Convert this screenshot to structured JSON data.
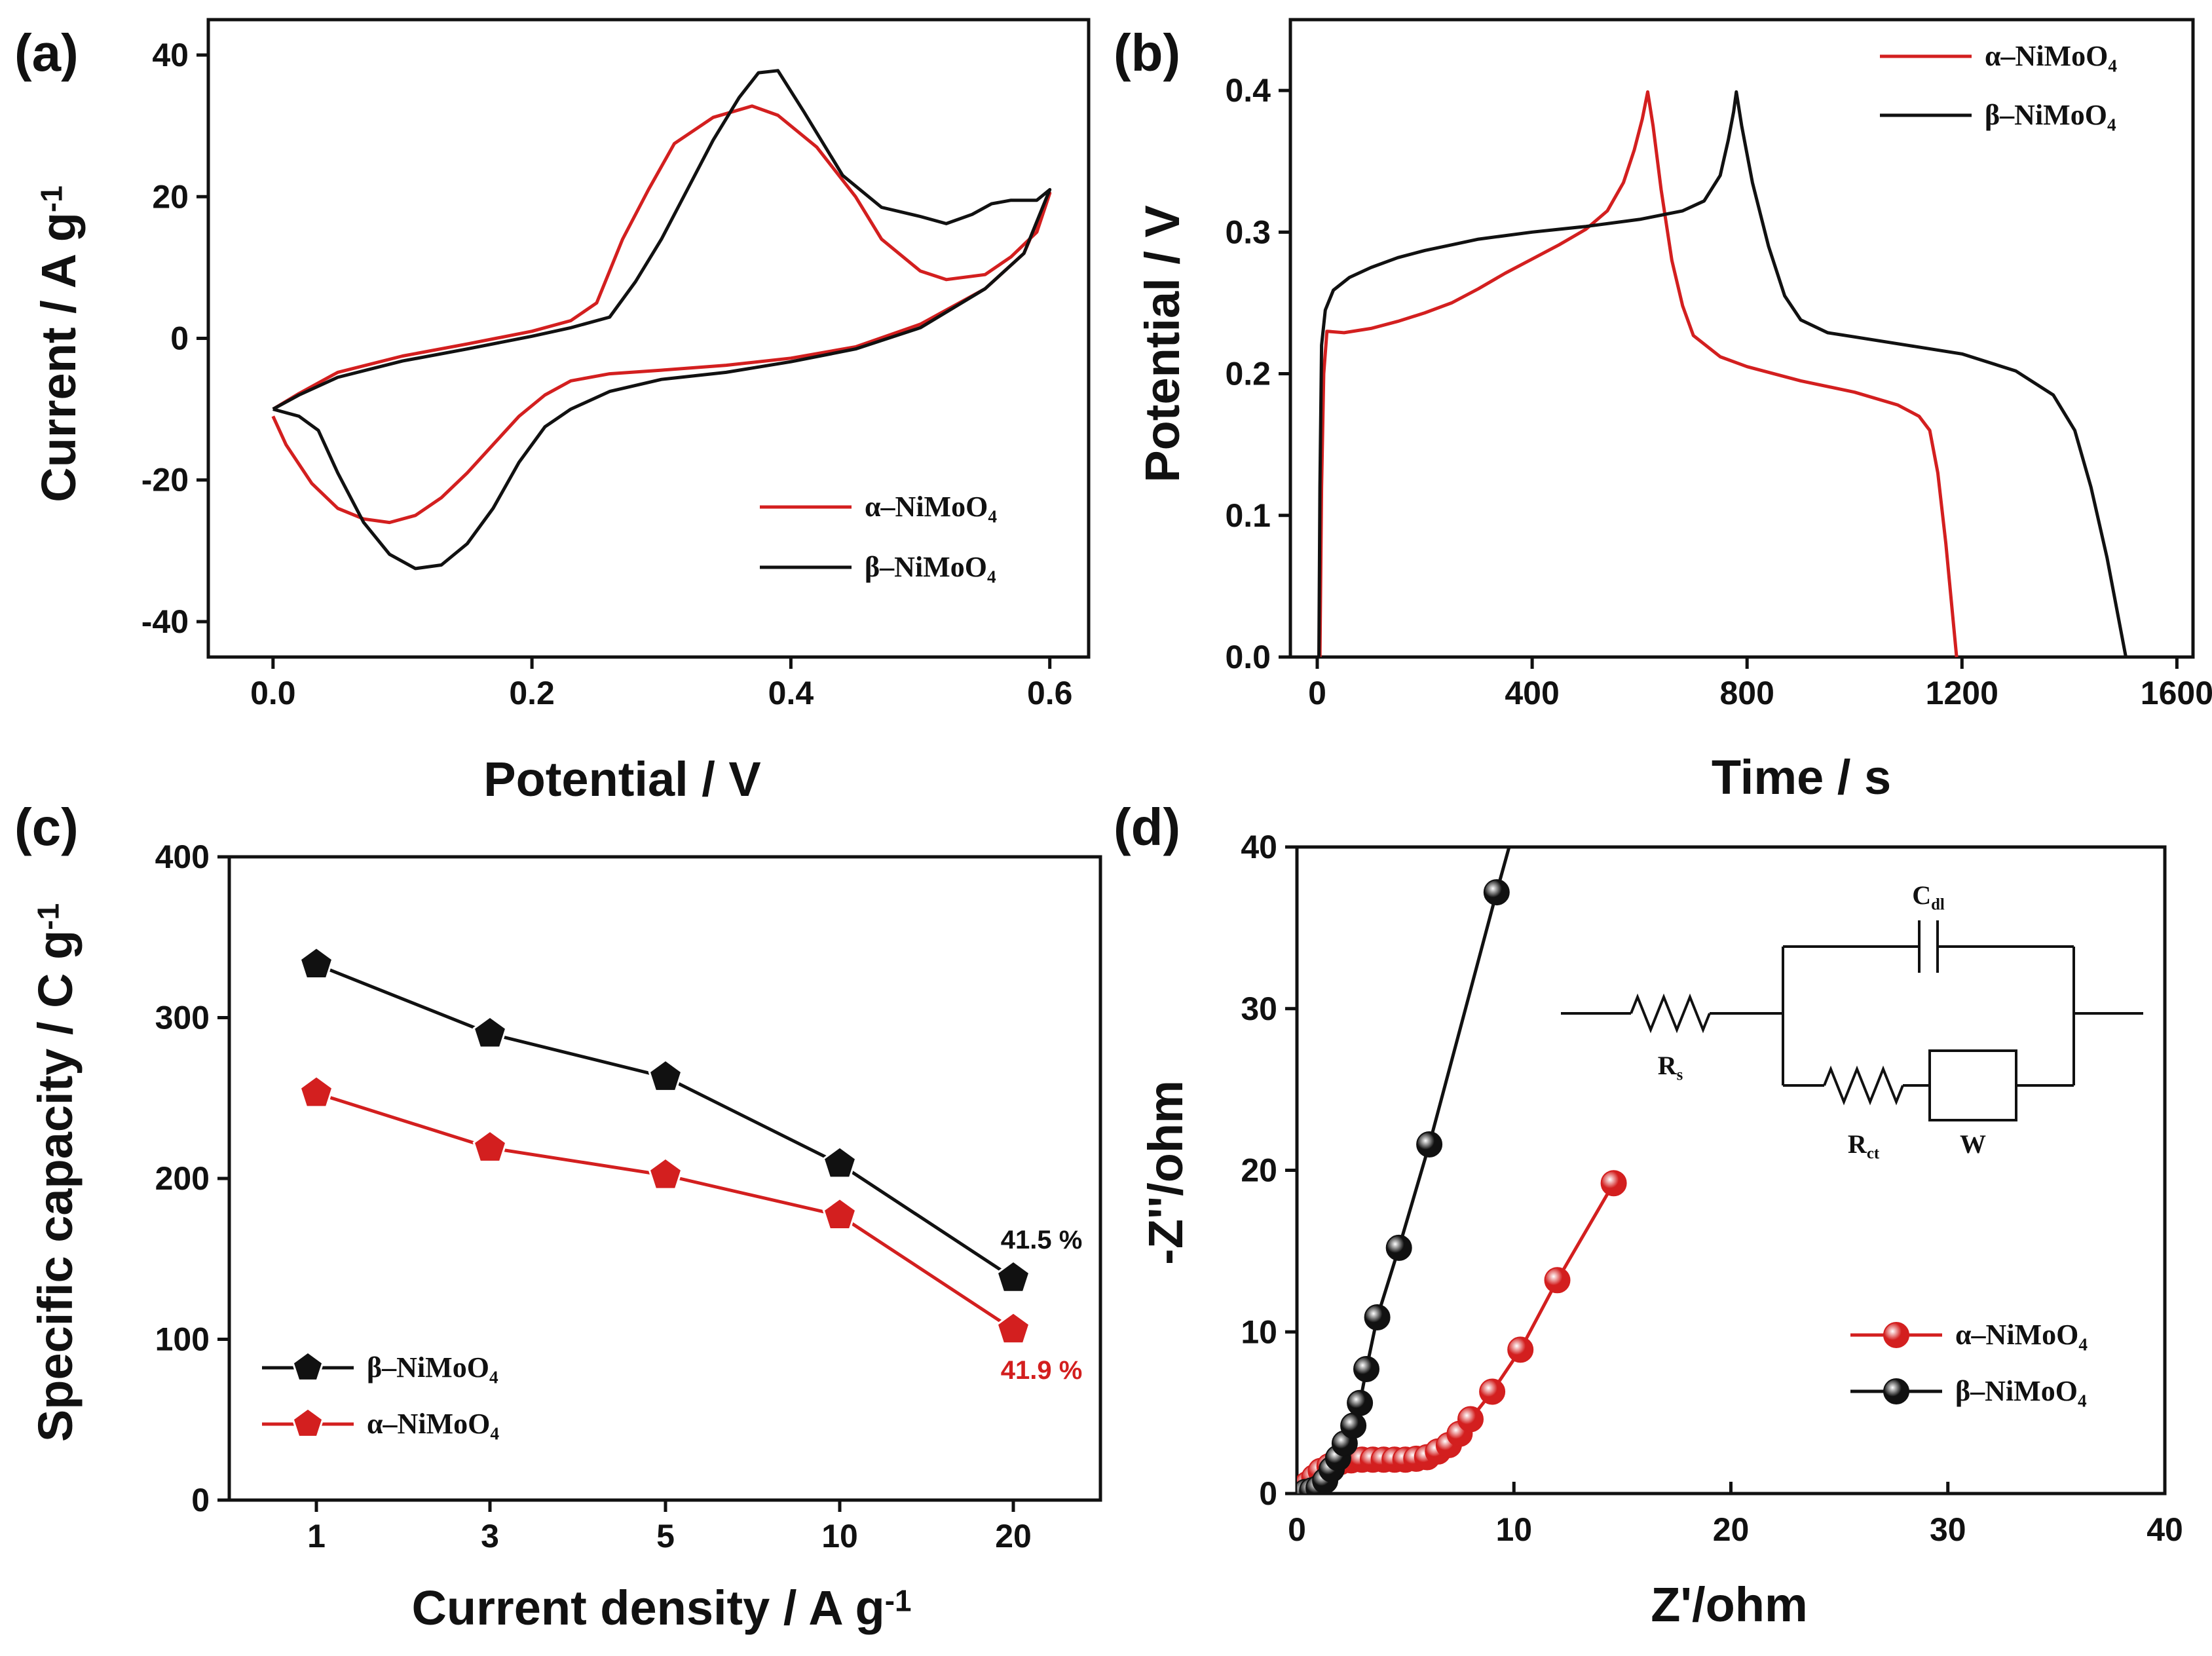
{
  "colors": {
    "alpha": "#d31f1f",
    "beta": "#111111",
    "axis": "#111111"
  },
  "chart_data": [
    {
      "panel": "(a)",
      "type": "line",
      "xlabel": "Potential / V",
      "ylabel": "Current / A g",
      "ylabel_sup": "-1",
      "xlim": [
        -0.05,
        0.63
      ],
      "ylim": [
        -45,
        45
      ],
      "xticks": [
        0.0,
        0.2,
        0.4,
        0.6
      ],
      "xtick_labels": [
        "0.0",
        "0.2",
        "0.4",
        "0.6"
      ],
      "yticks": [
        -40,
        -20,
        0,
        20,
        40
      ],
      "ytick_labels": [
        "-40",
        "-20",
        "0",
        "20",
        "40"
      ],
      "legend_position": "bottom-right",
      "series": [
        {
          "name": "α–NiMoO",
          "sub": "4",
          "color_key": "alpha",
          "points": [
            [
              0,
              -11
            ],
            [
              0.01,
              -15
            ],
            [
              0.03,
              -20.5
            ],
            [
              0.05,
              -24
            ],
            [
              0.07,
              -25.5
            ],
            [
              0.09,
              -26
            ],
            [
              0.11,
              -25
            ],
            [
              0.13,
              -22.5
            ],
            [
              0.15,
              -19
            ],
            [
              0.17,
              -15
            ],
            [
              0.19,
              -11
            ],
            [
              0.21,
              -8
            ],
            [
              0.23,
              -6
            ],
            [
              0.26,
              -5
            ],
            [
              0.3,
              -4.5
            ],
            [
              0.35,
              -3.8
            ],
            [
              0.4,
              -2.8
            ],
            [
              0.45,
              -1.2
            ],
            [
              0.5,
              2
            ],
            [
              0.55,
              7
            ],
            [
              0.58,
              12
            ],
            [
              0.6,
              20.5
            ],
            [
              0.59,
              15
            ],
            [
              0.57,
              11.5
            ],
            [
              0.55,
              9
            ],
            [
              0.52,
              8.3
            ],
            [
              0.5,
              9.5
            ],
            [
              0.47,
              14
            ],
            [
              0.45,
              20
            ],
            [
              0.42,
              27
            ],
            [
              0.39,
              31.5
            ],
            [
              0.37,
              32.8
            ],
            [
              0.34,
              31.2
            ],
            [
              0.31,
              27.5
            ],
            [
              0.29,
              21
            ],
            [
              0.27,
              14
            ],
            [
              0.25,
              5
            ],
            [
              0.23,
              2.5
            ],
            [
              0.2,
              1
            ],
            [
              0.15,
              -0.8
            ],
            [
              0.1,
              -2.5
            ],
            [
              0.05,
              -4.8
            ],
            [
              0.02,
              -7.8
            ],
            [
              0,
              -10
            ]
          ]
        },
        {
          "name": "β–NiMoO",
          "sub": "4",
          "color_key": "beta",
          "points": [
            [
              0,
              -10
            ],
            [
              0.02,
              -11
            ],
            [
              0.035,
              -13
            ],
            [
              0.05,
              -19
            ],
            [
              0.07,
              -26
            ],
            [
              0.09,
              -30.5
            ],
            [
              0.11,
              -32.5
            ],
            [
              0.13,
              -32
            ],
            [
              0.15,
              -29
            ],
            [
              0.17,
              -24
            ],
            [
              0.19,
              -17.5
            ],
            [
              0.21,
              -12.5
            ],
            [
              0.23,
              -10
            ],
            [
              0.26,
              -7.5
            ],
            [
              0.3,
              -5.8
            ],
            [
              0.35,
              -4.8
            ],
            [
              0.4,
              -3.3
            ],
            [
              0.45,
              -1.5
            ],
            [
              0.5,
              1.5
            ],
            [
              0.55,
              7
            ],
            [
              0.58,
              12
            ],
            [
              0.6,
              21
            ],
            [
              0.59,
              19.5
            ],
            [
              0.57,
              19.5
            ],
            [
              0.555,
              19
            ],
            [
              0.54,
              17.5
            ],
            [
              0.52,
              16.2
            ],
            [
              0.5,
              17.2
            ],
            [
              0.47,
              18.5
            ],
            [
              0.44,
              23
            ],
            [
              0.41,
              32
            ],
            [
              0.39,
              37.8
            ],
            [
              0.375,
              37.5
            ],
            [
              0.36,
              34
            ],
            [
              0.34,
              28
            ],
            [
              0.32,
              21
            ],
            [
              0.3,
              14
            ],
            [
              0.28,
              8
            ],
            [
              0.26,
              3
            ],
            [
              0.23,
              1.5
            ],
            [
              0.2,
              0.3
            ],
            [
              0.15,
              -1.5
            ],
            [
              0.1,
              -3.2
            ],
            [
              0.05,
              -5.5
            ],
            [
              0.02,
              -8
            ],
            [
              0,
              -10
            ]
          ]
        }
      ]
    },
    {
      "panel": "(b)",
      "type": "line",
      "xlabel": "Time / s",
      "ylabel": "Potential / V",
      "xlim": [
        -50,
        1630
      ],
      "ylim": [
        0,
        0.45
      ],
      "xticks": [
        0,
        400,
        800,
        1200,
        1600
      ],
      "xtick_labels": [
        "0",
        "400",
        "800",
        "1200",
        "1600"
      ],
      "yticks": [
        0.0,
        0.1,
        0.2,
        0.3,
        0.4
      ],
      "ytick_labels": [
        "0.0",
        "0.1",
        "0.2",
        "0.3",
        "0.4"
      ],
      "legend_position": "top-right",
      "series": [
        {
          "name": "α–NiMoO",
          "sub": "4",
          "color_key": "alpha",
          "points": [
            [
              5,
              0
            ],
            [
              8,
              0.12
            ],
            [
              12,
              0.2
            ],
            [
              18,
              0.23
            ],
            [
              50,
              0.229
            ],
            [
              100,
              0.232
            ],
            [
              150,
              0.237
            ],
            [
              200,
              0.243
            ],
            [
              250,
              0.25
            ],
            [
              300,
              0.26
            ],
            [
              350,
              0.271
            ],
            [
              400,
              0.281
            ],
            [
              450,
              0.291
            ],
            [
              500,
              0.302
            ],
            [
              540,
              0.315
            ],
            [
              570,
              0.335
            ],
            [
              590,
              0.358
            ],
            [
              605,
              0.38
            ],
            [
              615,
              0.399
            ],
            [
              625,
              0.375
            ],
            [
              640,
              0.33
            ],
            [
              660,
              0.28
            ],
            [
              680,
              0.248
            ],
            [
              700,
              0.227
            ],
            [
              750,
              0.212
            ],
            [
              800,
              0.205
            ],
            [
              900,
              0.195
            ],
            [
              1000,
              0.187
            ],
            [
              1080,
              0.178
            ],
            [
              1120,
              0.17
            ],
            [
              1140,
              0.16
            ],
            [
              1155,
              0.13
            ],
            [
              1170,
              0.08
            ],
            [
              1180,
              0.04
            ],
            [
              1190,
              0
            ]
          ]
        },
        {
          "name": "β–NiMoO",
          "sub": "4",
          "color_key": "beta",
          "points": [
            [
              3,
              0
            ],
            [
              5,
              0.12
            ],
            [
              8,
              0.22
            ],
            [
              15,
              0.245
            ],
            [
              30,
              0.259
            ],
            [
              60,
              0.268
            ],
            [
              100,
              0.275
            ],
            [
              150,
              0.282
            ],
            [
              200,
              0.287
            ],
            [
              250,
              0.291
            ],
            [
              300,
              0.295
            ],
            [
              400,
              0.3
            ],
            [
              500,
              0.304
            ],
            [
              600,
              0.309
            ],
            [
              680,
              0.315
            ],
            [
              720,
              0.322
            ],
            [
              750,
              0.34
            ],
            [
              765,
              0.365
            ],
            [
              775,
              0.385
            ],
            [
              780,
              0.399
            ],
            [
              790,
              0.375
            ],
            [
              810,
              0.335
            ],
            [
              840,
              0.29
            ],
            [
              870,
              0.255
            ],
            [
              900,
              0.238
            ],
            [
              950,
              0.229
            ],
            [
              1000,
              0.226
            ],
            [
              1100,
              0.22
            ],
            [
              1200,
              0.214
            ],
            [
              1300,
              0.202
            ],
            [
              1370,
              0.185
            ],
            [
              1410,
              0.16
            ],
            [
              1440,
              0.12
            ],
            [
              1470,
              0.07
            ],
            [
              1490,
              0.03
            ],
            [
              1505,
              0
            ]
          ]
        }
      ]
    },
    {
      "panel": "(c)",
      "type": "line",
      "xlabel": "Current density / A g",
      "xlabel_sup": "-1",
      "ylabel": "Specific capacity / C g",
      "ylabel_sup": "-1",
      "categories": [
        "1",
        "3",
        "5",
        "10",
        "20"
      ],
      "ylim": [
        0,
        400
      ],
      "yticks": [
        0,
        100,
        200,
        300,
        400
      ],
      "ytick_labels": [
        "0",
        "100",
        "200",
        "300",
        "400"
      ],
      "legend_position": "bottom-left",
      "series": [
        {
          "name": "β–NiMoO",
          "sub": "4",
          "color_key": "beta",
          "values": [
            333,
            290,
            263,
            209,
            138
          ],
          "annotation": "41.5 %"
        },
        {
          "name": "α–NiMoO",
          "sub": "4",
          "color_key": "alpha",
          "values": [
            253,
            219,
            202,
            177,
            106
          ],
          "annotation": "41.9 %"
        }
      ]
    },
    {
      "panel": "(d)",
      "type": "scatter",
      "xlabel": "Z'/ohm",
      "ylabel": "-Z''/ohm",
      "xlim": [
        0,
        40
      ],
      "ylim": [
        0,
        40
      ],
      "xticks": [
        0,
        10,
        20,
        30,
        40
      ],
      "xtick_labels": [
        "0",
        "10",
        "20",
        "30",
        "40"
      ],
      "yticks": [
        0,
        10,
        20,
        30,
        40
      ],
      "ytick_labels": [
        "0",
        "10",
        "20",
        "30",
        "40"
      ],
      "legend_position": "bottom-right",
      "inset_circuit_labels": {
        "rs": "R",
        "rs_sub": "s",
        "cdl": "C",
        "cdl_sub": "dl",
        "rct": "R",
        "rct_sub": "ct",
        "w": "W"
      },
      "series": [
        {
          "name": "α–NiMoO",
          "sub": "4",
          "color_key": "alpha",
          "points": [
            [
              0.3,
              0.2
            ],
            [
              0.5,
              0.6
            ],
            [
              0.8,
              1.0
            ],
            [
              1.1,
              1.4
            ],
            [
              1.5,
              1.7
            ],
            [
              2.0,
              1.95
            ],
            [
              2.5,
              2.05
            ],
            [
              3.0,
              2.1
            ],
            [
              3.5,
              2.1
            ],
            [
              4.0,
              2.1
            ],
            [
              4.5,
              2.1
            ],
            [
              5.0,
              2.1
            ],
            [
              5.5,
              2.15
            ],
            [
              6.0,
              2.25
            ],
            [
              6.5,
              2.6
            ],
            [
              7.0,
              3.0
            ],
            [
              7.5,
              3.7
            ],
            [
              8.0,
              4.6
            ],
            [
              9.0,
              6.3
            ],
            [
              10.3,
              8.9
            ],
            [
              12.0,
              13.2
            ],
            [
              14.6,
              19.2
            ]
          ]
        },
        {
          "name": "β–NiMoO",
          "sub": "4",
          "color_key": "beta",
          "points": [
            [
              0.4,
              0.1
            ],
            [
              0.7,
              0.2
            ],
            [
              1.0,
              0.35
            ],
            [
              1.3,
              0.8
            ],
            [
              1.6,
              1.5
            ],
            [
              1.9,
              2.2
            ],
            [
              2.2,
              3.1
            ],
            [
              2.6,
              4.2
            ],
            [
              2.9,
              5.6
            ],
            [
              3.2,
              7.7
            ],
            [
              3.7,
              10.9
            ],
            [
              4.7,
              15.2
            ],
            [
              6.1,
              21.6
            ],
            [
              9.2,
              37.2
            ]
          ]
        }
      ]
    }
  ]
}
